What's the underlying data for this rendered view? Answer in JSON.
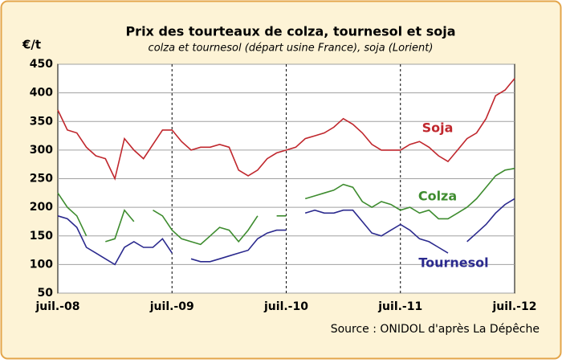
{
  "chart_data": {
    "type": "line",
    "title": "Prix des tourteaux de colza, tournesol et soja",
    "subtitle": "colza et tournesol (départ usine France), soja (Lorient)",
    "y_label": "€/t",
    "source": "Source : ONIDOL d'après La Dépêche",
    "x": [
      "2008-07",
      "2008-08",
      "2008-09",
      "2008-10",
      "2008-11",
      "2008-12",
      "2009-01",
      "2009-02",
      "2009-03",
      "2009-04",
      "2009-05",
      "2009-06",
      "2009-07",
      "2009-08",
      "2009-09",
      "2009-10",
      "2009-11",
      "2009-12",
      "2010-01",
      "2010-02",
      "2010-03",
      "2010-04",
      "2010-05",
      "2010-06",
      "2010-07",
      "2010-08",
      "2010-09",
      "2010-10",
      "2010-11",
      "2010-12",
      "2011-01",
      "2011-02",
      "2011-03",
      "2011-04",
      "2011-05",
      "2011-06",
      "2011-07",
      "2011-08",
      "2011-09",
      "2011-10",
      "2011-11",
      "2011-12",
      "2012-01",
      "2012-02",
      "2012-03",
      "2012-04",
      "2012-05",
      "2012-06",
      "2012-07"
    ],
    "xlim": [
      "2008-07",
      "2012-07"
    ],
    "xticks": [
      {
        "value": "2008-07",
        "label": "juil.-08"
      },
      {
        "value": "2009-07",
        "label": "juil.-09"
      },
      {
        "value": "2010-07",
        "label": "juil.-10"
      },
      {
        "value": "2011-07",
        "label": "juil.-11"
      },
      {
        "value": "2012-07",
        "label": "juil.-12"
      }
    ],
    "ylim": [
      50,
      450
    ],
    "yticks": [
      50,
      100,
      150,
      200,
      250,
      300,
      350,
      400,
      450
    ],
    "grid": true,
    "series": [
      {
        "name": "Soja",
        "color": "#c0272d",
        "values": [
          370,
          335,
          330,
          305,
          290,
          285,
          250,
          320,
          300,
          285,
          310,
          335,
          335,
          315,
          300,
          305,
          305,
          310,
          305,
          265,
          255,
          265,
          285,
          295,
          300,
          305,
          320,
          325,
          330,
          340,
          355,
          345,
          330,
          310,
          300,
          300,
          300,
          310,
          315,
          305,
          290,
          280,
          300,
          320,
          330,
          355,
          395,
          405,
          425
        ]
      },
      {
        "name": "Colza",
        "color": "#3e8c2f",
        "values": [
          225,
          200,
          185,
          150,
          null,
          140,
          145,
          195,
          175,
          null,
          195,
          185,
          160,
          145,
          140,
          135,
          150,
          165,
          160,
          140,
          160,
          185,
          null,
          185,
          185,
          null,
          215,
          220,
          225,
          230,
          240,
          235,
          210,
          200,
          210,
          205,
          195,
          200,
          190,
          195,
          180,
          180,
          190,
          200,
          215,
          235,
          255,
          265,
          268
        ]
      },
      {
        "name": "Tournesol",
        "color": "#2b2a8e",
        "values": [
          185,
          180,
          165,
          130,
          120,
          110,
          100,
          130,
          140,
          130,
          130,
          145,
          120,
          null,
          110,
          105,
          105,
          110,
          115,
          120,
          125,
          145,
          155,
          160,
          160,
          null,
          190,
          195,
          190,
          190,
          195,
          195,
          175,
          155,
          150,
          160,
          170,
          160,
          145,
          140,
          130,
          120,
          null,
          140,
          155,
          170,
          190,
          205,
          215
        ]
      }
    ]
  }
}
